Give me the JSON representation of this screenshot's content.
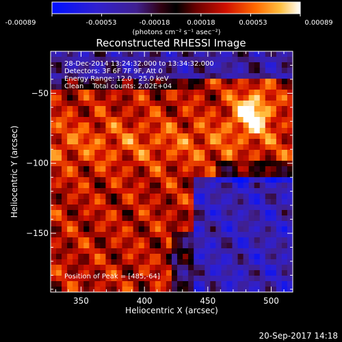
{
  "colorbar": {
    "ticks": [
      "-0.00089",
      "-0.00053",
      "-0.00018",
      "0.00018",
      "0.00053",
      "0.00089"
    ],
    "unit": "(photons cm⁻² s⁻¹ asec⁻²)",
    "range": [
      -0.00089,
      0.00089
    ]
  },
  "title": "Reconstructed RHESSI Image",
  "annotations": [
    "28-Dec-2014 13:24:32.000 to 13:34:32.000",
    "Detectors: 3F 6F 7F 9F, Att 0",
    "Energy Range: 12.0 - 25.0 keV",
    "Clean    Total counts: 2.02E+04"
  ],
  "peak_label": "Position of Peak = [485,-64]",
  "footer_date": "20-Sep-2017 14:18",
  "chart_data": {
    "type": "heatmap",
    "title": "Reconstructed RHESSI Image",
    "xlabel": "Heliocentric X (arcsec)",
    "ylabel": "Heliocentric Y (arcsec)",
    "xlim": [
      326,
      517
    ],
    "ylim": [
      -192,
      -20
    ],
    "x_ticks": [
      350,
      400,
      450,
      500
    ],
    "y_ticks": [
      -50,
      -100,
      -150
    ],
    "colormap": "red-temperature (blue = negative, white = max)",
    "peak": [
      485,
      -64
    ],
    "grid": false
  }
}
